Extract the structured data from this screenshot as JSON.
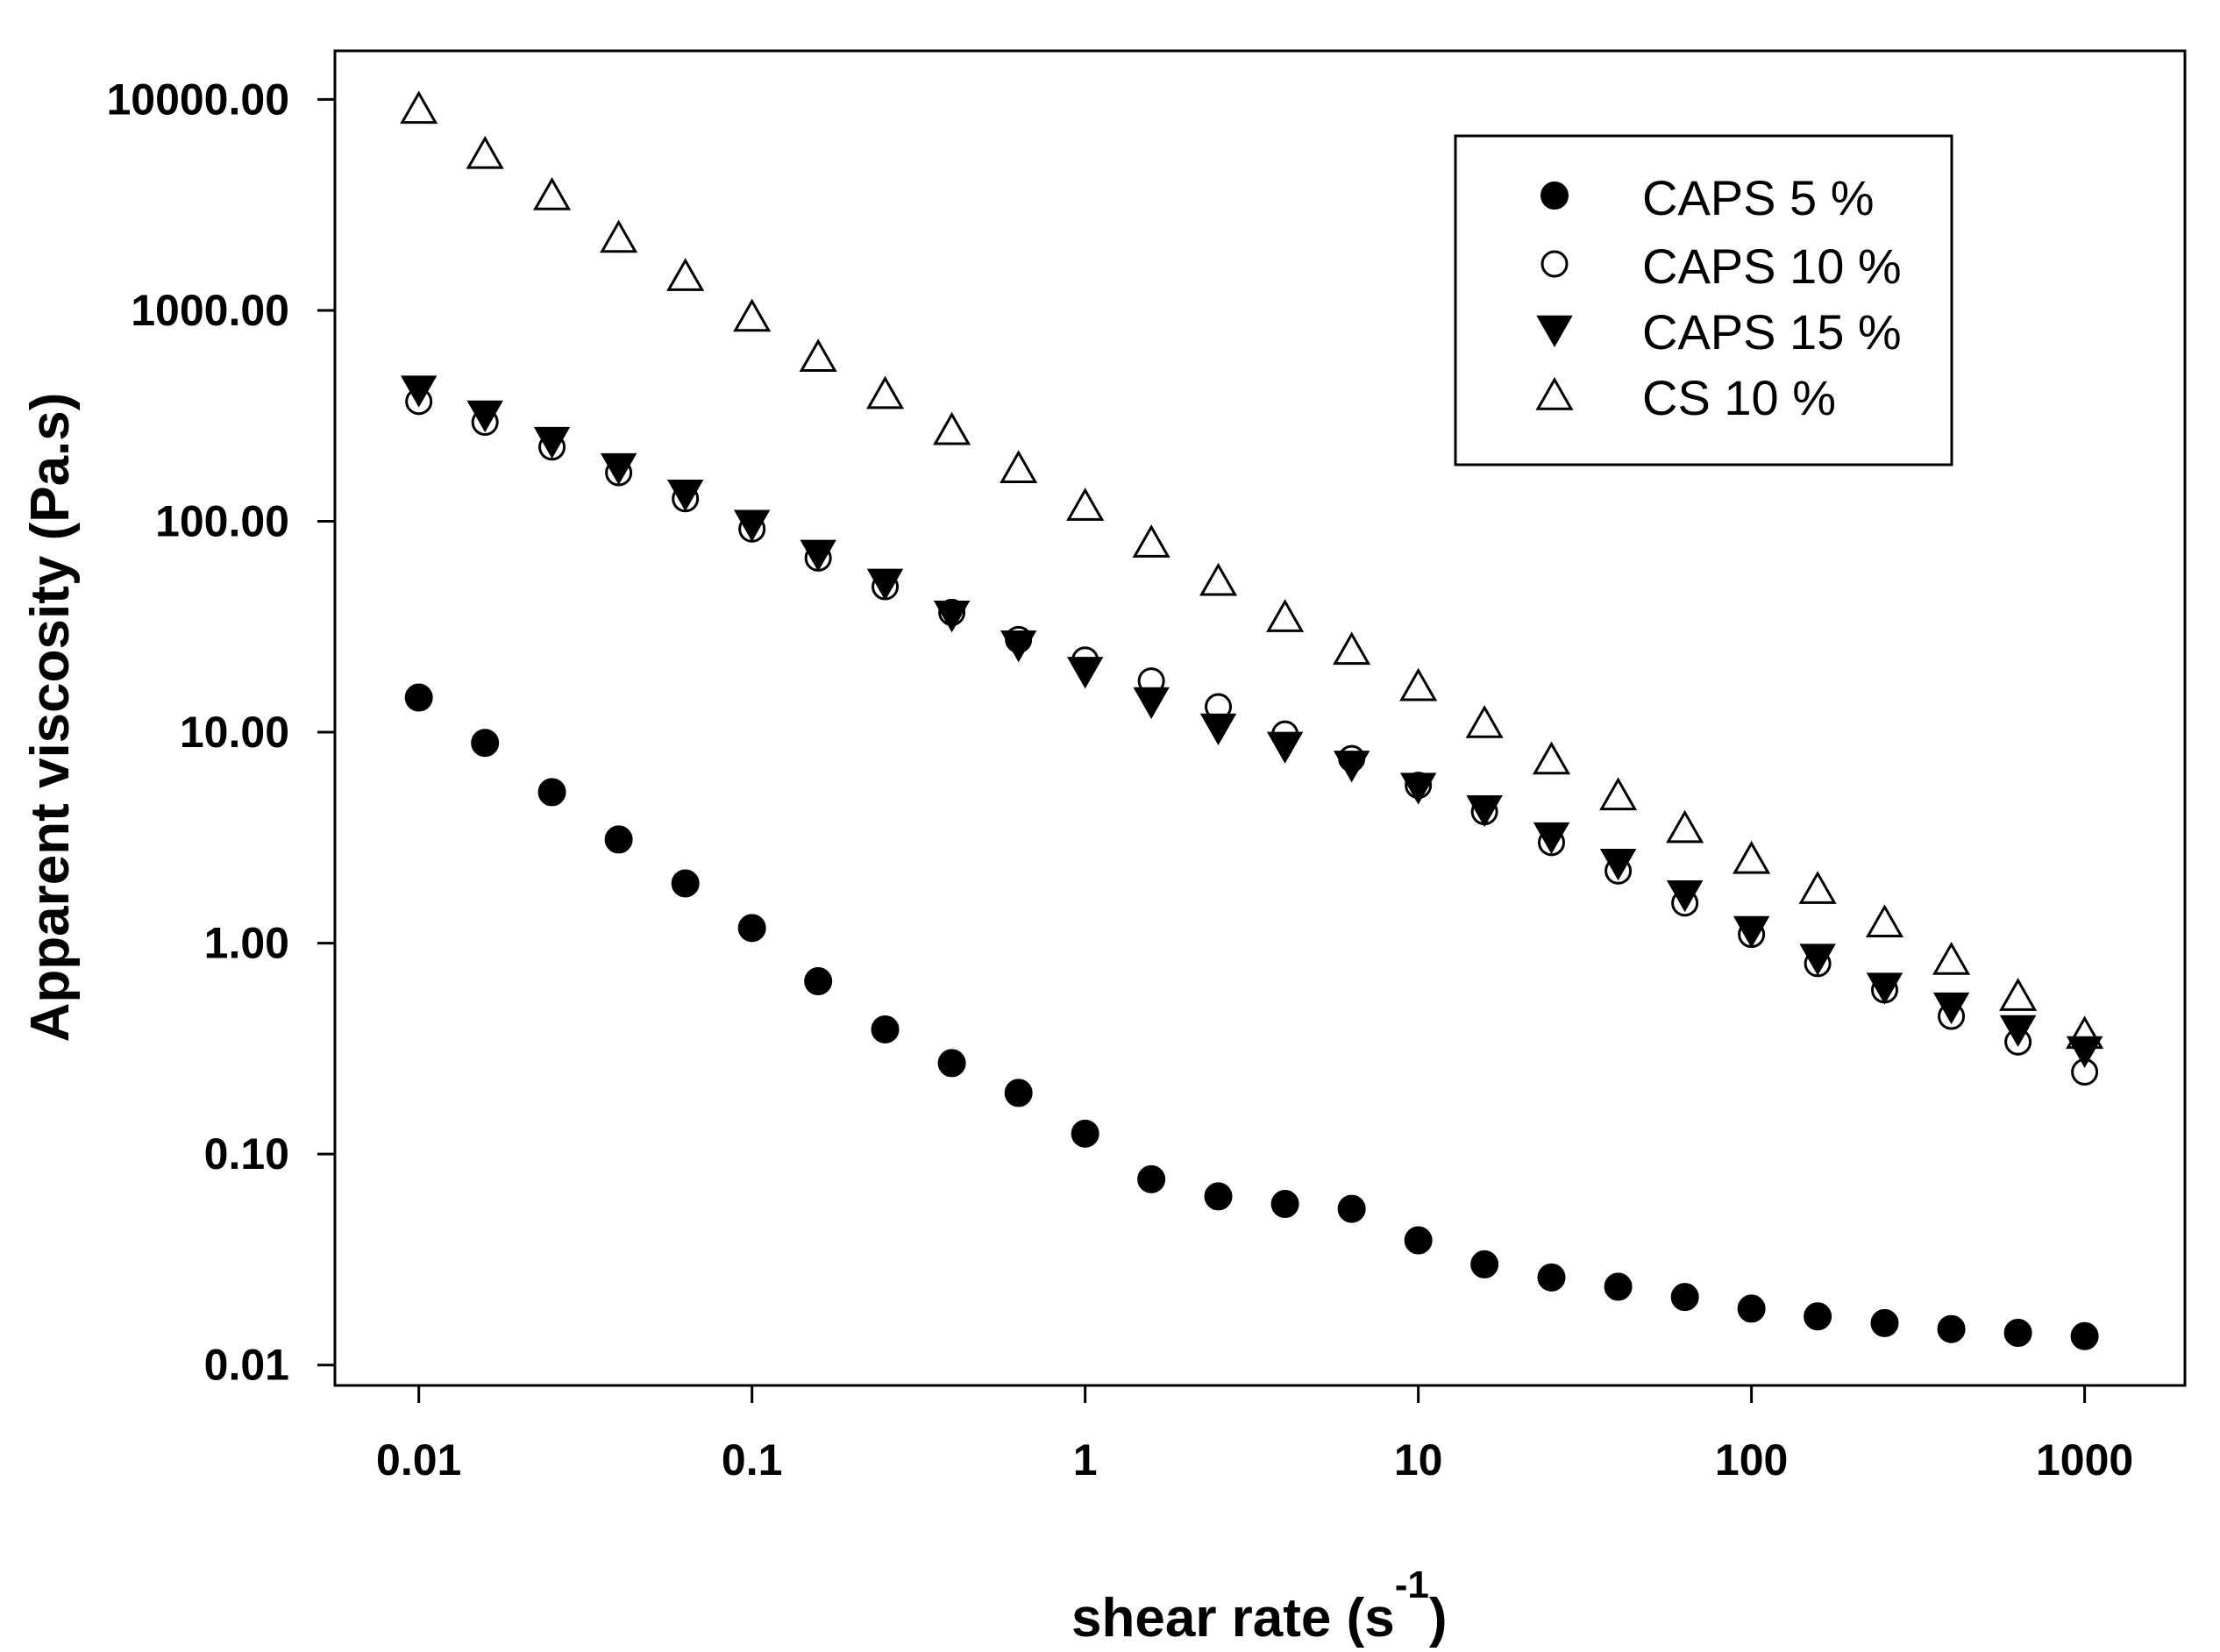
{
  "chart_data": {
    "type": "scatter",
    "x_scale": "log",
    "y_scale": "log",
    "xlabel": "shear rate (s",
    "xlabel_sup": "-1",
    "xlabel_close": ")",
    "ylabel": "Apparent viscosity (Pa.s)",
    "xlim": [
      0.0056,
      2000
    ],
    "ylim": [
      0.008,
      17000
    ],
    "x_ticks": [
      0.01,
      0.1,
      1,
      10,
      100,
      1000
    ],
    "x_tick_labels": [
      "0.01",
      "0.1",
      "1",
      "10",
      "100",
      "1000"
    ],
    "y_ticks": [
      0.01,
      0.1,
      1,
      10,
      100,
      1000,
      10000
    ],
    "y_tick_labels": [
      "0.01",
      "0.10",
      "1.00",
      "10.00",
      "100.00",
      "1000.00",
      "10000.00"
    ],
    "legend_position": "top-right",
    "x": [
      0.01,
      0.0158,
      0.0251,
      0.0398,
      0.0631,
      0.1,
      0.158,
      0.251,
      0.398,
      0.631,
      1,
      1.58,
      2.51,
      3.98,
      6.31,
      10,
      15.8,
      25.1,
      39.8,
      63.1,
      100,
      158,
      251,
      398,
      631,
      1000
    ],
    "series": [
      {
        "name": "CAPS 5 %",
        "marker": "filled-circle",
        "values": [
          14.6,
          8.9,
          5.2,
          3.1,
          1.92,
          1.18,
          0.66,
          0.39,
          0.27,
          0.195,
          0.125,
          0.076,
          0.063,
          0.058,
          0.055,
          0.039,
          0.03,
          0.026,
          0.0235,
          0.021,
          0.0185,
          0.017,
          0.0158,
          0.0148,
          0.0142,
          0.0137
        ]
      },
      {
        "name": "CAPS 10 %",
        "marker": "open-circle",
        "values": [
          370,
          295,
          225,
          170,
          128,
          92,
          67,
          49,
          37,
          27.5,
          22,
          17.5,
          13.2,
          9.8,
          7.5,
          5.6,
          4.2,
          3.0,
          2.2,
          1.55,
          1.1,
          0.8,
          0.6,
          0.45,
          0.34,
          0.245
        ]
      },
      {
        "name": "CAPS 15 %",
        "marker": "filled-triangle-down",
        "values": [
          420,
          320,
          240,
          180,
          135,
          97,
          70,
          51,
          36,
          26,
          19.5,
          14,
          10.5,
          8.6,
          7.0,
          5.5,
          4.3,
          3.2,
          2.4,
          1.7,
          1.15,
          0.85,
          0.62,
          0.5,
          0.39,
          0.31
        ]
      },
      {
        "name": "CS 10 %",
        "marker": "open-triangle-up",
        "values": [
          9000,
          5500,
          3500,
          2200,
          1450,
          930,
          600,
          400,
          270,
          178,
          118,
          79,
          52,
          35,
          24.5,
          16.5,
          11,
          7.4,
          5.0,
          3.5,
          2.5,
          1.8,
          1.25,
          0.83,
          0.56,
          0.37
        ]
      }
    ]
  }
}
